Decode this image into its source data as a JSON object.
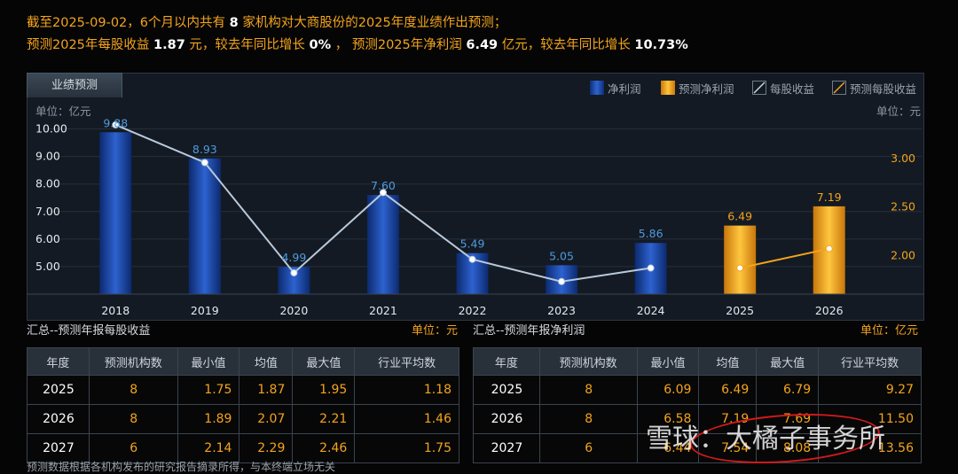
{
  "summary": {
    "line1_prefix": "截至2025-09-02，6个月以内共有",
    "org_count": "8",
    "line1_suffix": "家机构对大商股份的2025年度业绩作出预测；",
    "eps_prefix": "预测2025年每股收益",
    "eps_value": "1.87",
    "eps_unit": "元，较去年同比增长",
    "eps_growth": "0%",
    "eps_sep": "，",
    "np_prefix": "预测2025年净利润",
    "np_value": "6.49",
    "np_unit": "亿元，较去年同比增长",
    "np_growth": "10.73%"
  },
  "tab_label": "业绩预测",
  "legend": {
    "net_profit": "净利润",
    "forecast_net_profit": "预测净利润",
    "eps": "每股收益",
    "forecast_eps": "预测每股收益"
  },
  "colors": {
    "actual_bar": "#1a47a8",
    "forecast_bar": "#f3a41c",
    "eps_line": "#b9c9db",
    "forecast_line": "#f3a41c",
    "accent_text": "#f3a41c"
  },
  "chart_data": {
    "type": "bar",
    "categories": [
      "2018",
      "2019",
      "2020",
      "2021",
      "2022",
      "2023",
      "2024",
      "2025",
      "2026"
    ],
    "left_axis_unit": "单位：亿元",
    "right_axis_unit": "单位：元",
    "left_ticks": [
      "5.00",
      "6.00",
      "7.00",
      "8.00",
      "9.00",
      "10.00"
    ],
    "right_ticks": [
      "2.00",
      "2.50",
      "3.00"
    ],
    "ylim_left": [
      4.0,
      10.5
    ],
    "ylim_right": [
      1.6,
      3.45
    ],
    "series": [
      {
        "name": "净利润",
        "values": [
          9.88,
          8.93,
          4.99,
          7.6,
          5.49,
          5.05,
          5.86,
          null,
          null
        ],
        "labels": [
          "9.88",
          "8.93",
          "4.99",
          "7.60",
          "5.49",
          "5.05",
          "5.86",
          "",
          ""
        ]
      },
      {
        "name": "预测净利润",
        "values": [
          null,
          null,
          null,
          null,
          null,
          null,
          null,
          6.49,
          7.19
        ],
        "labels": [
          "",
          "",
          "",
          "",
          "",
          "",
          "",
          "6.49",
          "7.19"
        ]
      },
      {
        "name": "每股收益",
        "values": [
          3.35,
          2.96,
          1.82,
          2.65,
          1.96,
          1.73,
          1.87,
          null,
          null
        ]
      },
      {
        "name": "预测每股收益",
        "values": [
          null,
          null,
          null,
          null,
          null,
          null,
          null,
          1.87,
          2.07
        ]
      }
    ]
  },
  "eps_table": {
    "title": "汇总--预测年报每股收益",
    "unit": "单位：元",
    "headers": [
      "年度",
      "预测机构数",
      "最小值",
      "均值",
      "最大值",
      "行业平均数"
    ],
    "rows": [
      [
        "2025",
        "8",
        "1.75",
        "1.87",
        "1.95",
        "1.18"
      ],
      [
        "2026",
        "8",
        "1.89",
        "2.07",
        "2.21",
        "1.46"
      ],
      [
        "2027",
        "6",
        "2.14",
        "2.29",
        "2.46",
        "1.75"
      ]
    ]
  },
  "np_table": {
    "title": "汇总--预测年报净利润",
    "unit": "单位：亿元",
    "headers": [
      "年度",
      "预测机构数",
      "最小值",
      "均值",
      "最大值",
      "行业平均数"
    ],
    "rows": [
      [
        "2025",
        "8",
        "6.09",
        "6.49",
        "6.79",
        "9.27"
      ],
      [
        "2026",
        "8",
        "6.58",
        "7.19",
        "7.69",
        "11.50"
      ],
      [
        "2027",
        "6",
        "6.44",
        "7.54",
        "8.08",
        "13.56"
      ]
    ]
  },
  "footnote": "预测数据根据各机构发布的研究报告摘录所得，与本终端立场无关",
  "watermark": "雪球：大橘子事务所"
}
